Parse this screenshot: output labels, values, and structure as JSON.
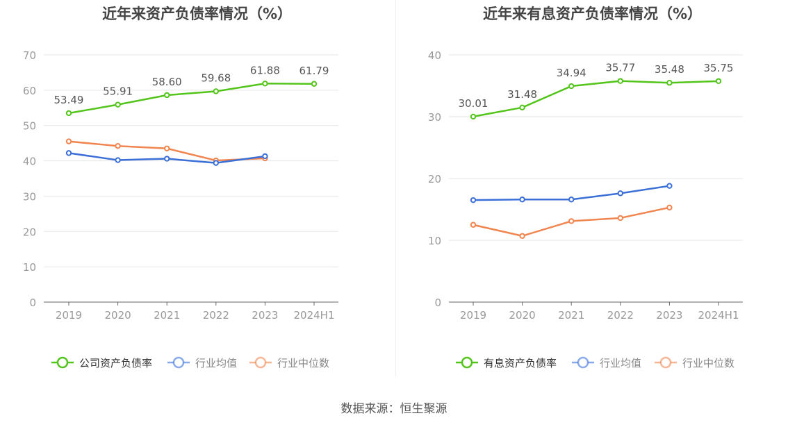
{
  "source": "数据来源：恒生聚源",
  "colors": {
    "primary": "#52c41a",
    "average": "#3b6fd8",
    "median": "#f0854f",
    "grid": "#e6e6e6",
    "tick": "#999999",
    "label": "#555555"
  },
  "chart_data": [
    {
      "type": "line",
      "title": "近年来资产负债率情况（%）",
      "categories": [
        "2019",
        "2020",
        "2021",
        "2022",
        "2023",
        "2024H1"
      ],
      "ylim": [
        0,
        70
      ],
      "yticks": [
        0,
        10,
        20,
        30,
        40,
        50,
        60,
        70
      ],
      "grid": true,
      "legend_position": "bottom",
      "series": [
        {
          "name": "公司资产负债率",
          "color": "#52c41a",
          "labels": true,
          "values": [
            53.49,
            55.91,
            58.6,
            59.68,
            61.88,
            61.79
          ]
        },
        {
          "name": "行业均值",
          "color": "#3b6fd8",
          "labels": false,
          "values": [
            42.2,
            40.2,
            40.6,
            39.4,
            41.3,
            null
          ]
        },
        {
          "name": "行业中位数",
          "color": "#f0854f",
          "labels": false,
          "values": [
            45.5,
            44.2,
            43.5,
            40.1,
            40.7,
            null
          ]
        }
      ]
    },
    {
      "type": "line",
      "title": "近年来有息资产负债率情况（%）",
      "categories": [
        "2019",
        "2020",
        "2021",
        "2022",
        "2023",
        "2024H1"
      ],
      "ylim": [
        0,
        40
      ],
      "yticks": [
        0,
        10,
        20,
        30,
        40
      ],
      "grid": true,
      "legend_position": "bottom",
      "series": [
        {
          "name": "有息资产负债率",
          "color": "#52c41a",
          "labels": true,
          "values": [
            30.01,
            31.48,
            34.94,
            35.77,
            35.48,
            35.75
          ]
        },
        {
          "name": "行业均值",
          "color": "#3b6fd8",
          "labels": false,
          "values": [
            16.5,
            16.6,
            16.6,
            17.6,
            18.8,
            null
          ]
        },
        {
          "name": "行业中位数",
          "color": "#f0854f",
          "labels": false,
          "values": [
            12.5,
            10.7,
            13.1,
            13.6,
            15.3,
            null
          ]
        }
      ]
    }
  ]
}
